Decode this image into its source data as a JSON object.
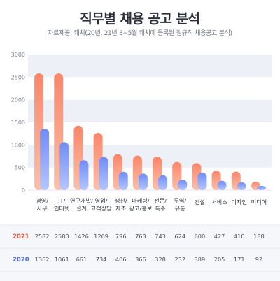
{
  "title": "직무별 채용 공고 분석",
  "subtitle": "자료제공: 캐치(20년, 21년 3~5월 캐치에 등록된 정규직 채용공고 분석)",
  "colors": {
    "bar_2021_top": "#f9866a",
    "bar_2021_bottom": "#fbc0aa",
    "bar_2020_top": "#6f8cf5",
    "bar_2020_bottom": "#b6c6ff",
    "year_2021": "#e4573f",
    "year_2020": "#4f6bd8"
  },
  "chart_data": {
    "type": "bar",
    "categories": [
      "경영/\n사무",
      "IT/\n인터넷",
      "연구개발/\n설계",
      "영업/\n고객상담",
      "생산/\n제조",
      "마케팅/\n광고/홍보",
      "전문/\n특수",
      "무역/\n유통",
      "건설",
      "서비스",
      "디자인",
      "미디어"
    ],
    "series": [
      {
        "name": "2021",
        "values": [
          2582,
          2580,
          1426,
          1269,
          796,
          763,
          743,
          624,
          600,
          427,
          410,
          188
        ]
      },
      {
        "name": "2020",
        "values": [
          1362,
          1061,
          661,
          734,
          406,
          366,
          328,
          232,
          389,
          205,
          171,
          92
        ]
      }
    ],
    "ylim": [
      0,
      3000
    ],
    "yticks": [
      "0",
      "500",
      "1000",
      "1500",
      "2000",
      "2500",
      "3000"
    ],
    "grid": "horizontal bands",
    "legend": "bottom table"
  },
  "table": {
    "rows": [
      {
        "year": "2021",
        "values": [
          "2582",
          "2580",
          "1426",
          "1269",
          "796",
          "763",
          "743",
          "624",
          "600",
          "427",
          "410",
          "188"
        ]
      },
      {
        "year": "2020",
        "values": [
          "1362",
          "1061",
          "661",
          "734",
          "406",
          "366",
          "328",
          "232",
          "389",
          "205",
          "171",
          "92"
        ]
      }
    ]
  }
}
